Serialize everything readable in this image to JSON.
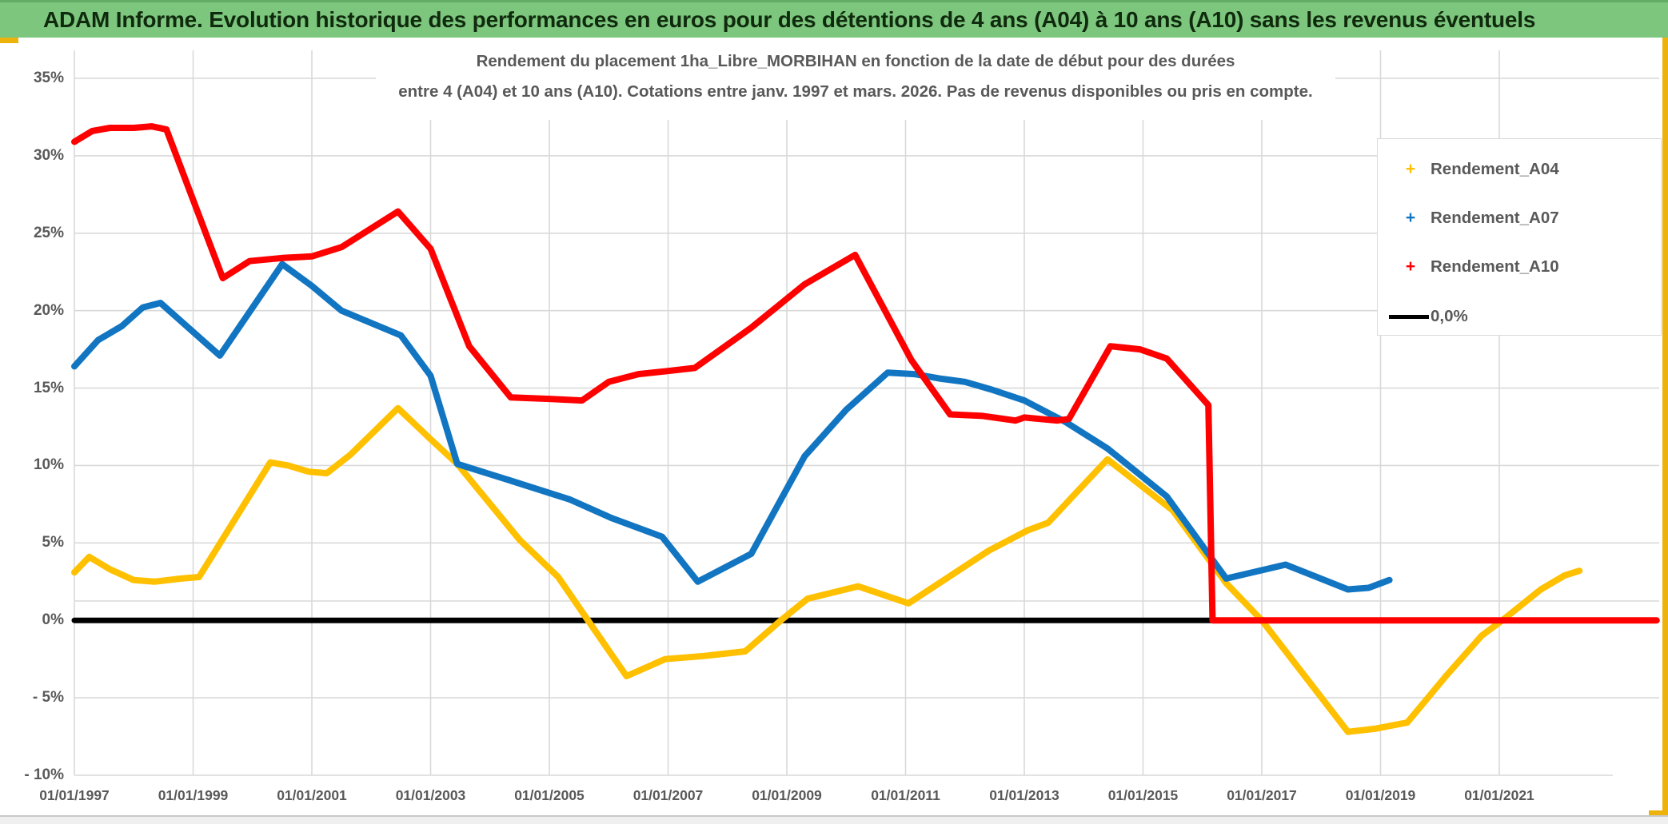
{
  "header": {
    "title": "ADAM Informe. Evolution historique des performances en euros pour des détentions de 4 ans (A04) à 10 ans (A10) sans les revenus éventuels"
  },
  "chart_data": {
    "type": "line",
    "title_line1": "Rendement du placement 1ha_Libre_MORBIHAN en fonction de la date de début pour des durées",
    "title_line2": "entre 4 (A04) et 10 ans (A10). Cotations entre janv. 1997 et mars. 2026. Pas de revenus disponibles ou pris en compte.",
    "x_axis": {
      "tick_labels": [
        "01/01/1997",
        "01/01/1999",
        "01/01/2001",
        "01/01/2003",
        "01/01/2005",
        "01/01/2007",
        "01/01/2009",
        "01/01/2011",
        "01/01/2013",
        "01/01/2015",
        "01/01/2017",
        "01/01/2019",
        "01/01/2021"
      ],
      "tick_years": [
        1997,
        1999,
        2001,
        2003,
        2005,
        2007,
        2009,
        2011,
        2013,
        2015,
        2017,
        2019,
        2021
      ],
      "min_year": 1997.0,
      "max_year": 2023.7,
      "grid": true
    },
    "y_axis": {
      "tick_labels": [
        "35%",
        "30%",
        "25%",
        "20%",
        "15%",
        "10%",
        "5%",
        "0%",
        "- 5%",
        "- 10%"
      ],
      "tick_values": [
        35,
        30,
        25,
        20,
        15,
        10,
        5,
        0,
        -5,
        -10
      ],
      "extra_gridline_value": 1.25,
      "unit": "percent",
      "min": -10,
      "max": 36.8,
      "grid": true
    },
    "legend": {
      "position": "right",
      "items": [
        {
          "label": "Rendement_A04",
          "marker": "+",
          "color": "#FFC000"
        },
        {
          "label": "Rendement_A07",
          "marker": "+",
          "color": "#1175C2"
        },
        {
          "label": "Rendement_A10",
          "marker": "+",
          "color": "#FF0000"
        },
        {
          "label": "0,0%",
          "marker": "line",
          "color": "#000000"
        }
      ]
    },
    "series": [
      {
        "name": "0,0%",
        "color": "#000000",
        "width": 7,
        "points": [
          [
            1997.0,
            0
          ],
          [
            2023.65,
            0
          ]
        ]
      },
      {
        "name": "Rendement_A04",
        "color": "#FFC000",
        "width": 8,
        "points": [
          [
            1997.0,
            3.1
          ],
          [
            1997.25,
            4.1
          ],
          [
            1997.6,
            3.3
          ],
          [
            1998.0,
            2.6
          ],
          [
            1998.35,
            2.5
          ],
          [
            1998.8,
            2.7
          ],
          [
            1999.1,
            2.8
          ],
          [
            2000.3,
            10.2
          ],
          [
            2000.6,
            10.0
          ],
          [
            2000.95,
            9.6
          ],
          [
            2001.25,
            9.5
          ],
          [
            2001.65,
            10.7
          ],
          [
            2002.45,
            13.7
          ],
          [
            2003.0,
            11.7
          ],
          [
            2003.45,
            10.1
          ],
          [
            2004.5,
            5.2
          ],
          [
            2005.15,
            2.8
          ],
          [
            2005.65,
            0.0
          ],
          [
            2006.3,
            -3.6
          ],
          [
            2006.95,
            -2.5
          ],
          [
            2007.6,
            -2.3
          ],
          [
            2008.3,
            -2.0
          ],
          [
            2008.9,
            0.0
          ],
          [
            2009.35,
            1.4
          ],
          [
            2010.2,
            2.2
          ],
          [
            2011.05,
            1.1
          ],
          [
            2012.4,
            4.5
          ],
          [
            2013.05,
            5.8
          ],
          [
            2013.4,
            6.3
          ],
          [
            2014.4,
            10.4
          ],
          [
            2015.5,
            7.1
          ],
          [
            2016.4,
            2.4
          ],
          [
            2017.0,
            0.0
          ],
          [
            2018.45,
            -7.2
          ],
          [
            2018.9,
            -7.0
          ],
          [
            2019.45,
            -6.6
          ],
          [
            2020.1,
            -3.6
          ],
          [
            2020.7,
            -1.0
          ],
          [
            2021.05,
            0.0
          ],
          [
            2021.7,
            2.0
          ],
          [
            2022.1,
            2.9
          ],
          [
            2022.35,
            3.2
          ]
        ]
      },
      {
        "name": "Rendement_A07",
        "color": "#1175C2",
        "width": 8,
        "points": [
          [
            1997.0,
            16.4
          ],
          [
            1997.4,
            18.1
          ],
          [
            1997.8,
            19.0
          ],
          [
            1998.15,
            20.2
          ],
          [
            1998.45,
            20.5
          ],
          [
            1999.45,
            17.1
          ],
          [
            2000.5,
            23.0
          ],
          [
            2001.0,
            21.6
          ],
          [
            2001.5,
            20.0
          ],
          [
            2002.0,
            19.2
          ],
          [
            2002.5,
            18.4
          ],
          [
            2003.0,
            15.8
          ],
          [
            2003.45,
            10.1
          ],
          [
            2004.2,
            9.2
          ],
          [
            2005.35,
            7.8
          ],
          [
            2006.05,
            6.6
          ],
          [
            2006.9,
            5.4
          ],
          [
            2007.5,
            2.5
          ],
          [
            2008.4,
            4.3
          ],
          [
            2009.3,
            10.6
          ],
          [
            2010.0,
            13.6
          ],
          [
            2010.7,
            16.0
          ],
          [
            2011.15,
            15.9
          ],
          [
            2011.6,
            15.6
          ],
          [
            2012.0,
            15.4
          ],
          [
            2012.45,
            14.9
          ],
          [
            2013.0,
            14.2
          ],
          [
            2013.7,
            12.8
          ],
          [
            2014.4,
            11.1
          ],
          [
            2015.4,
            8.0
          ],
          [
            2016.4,
            2.7
          ],
          [
            2017.4,
            3.6
          ],
          [
            2018.45,
            2.0
          ],
          [
            2018.8,
            2.1
          ],
          [
            2019.15,
            2.6
          ]
        ]
      },
      {
        "name": "Rendement_A10",
        "color": "#FF0000",
        "width": 8,
        "points": [
          [
            1997.0,
            30.9
          ],
          [
            1997.3,
            31.6
          ],
          [
            1997.6,
            31.8
          ],
          [
            1998.0,
            31.8
          ],
          [
            1998.3,
            31.9
          ],
          [
            1998.55,
            31.7
          ],
          [
            1999.5,
            22.1
          ],
          [
            1999.95,
            23.2
          ],
          [
            2000.5,
            23.4
          ],
          [
            2001.0,
            23.5
          ],
          [
            2001.5,
            24.1
          ],
          [
            2002.45,
            26.4
          ],
          [
            2003.0,
            24.0
          ],
          [
            2003.65,
            17.7
          ],
          [
            2004.35,
            14.4
          ],
          [
            2005.0,
            14.3
          ],
          [
            2005.55,
            14.2
          ],
          [
            2006.0,
            15.4
          ],
          [
            2006.5,
            15.9
          ],
          [
            2007.0,
            16.1
          ],
          [
            2007.45,
            16.3
          ],
          [
            2008.4,
            18.9
          ],
          [
            2009.3,
            21.7
          ],
          [
            2010.15,
            23.6
          ],
          [
            2011.1,
            16.8
          ],
          [
            2011.75,
            13.3
          ],
          [
            2012.3,
            13.2
          ],
          [
            2012.85,
            12.9
          ],
          [
            2013.0,
            13.1
          ],
          [
            2013.55,
            12.9
          ],
          [
            2013.75,
            13.0
          ],
          [
            2014.45,
            17.7
          ],
          [
            2014.95,
            17.5
          ],
          [
            2015.4,
            16.9
          ],
          [
            2016.1,
            13.9
          ],
          [
            2016.17,
            0.0
          ],
          [
            2023.65,
            0.0
          ]
        ]
      }
    ],
    "colors": {
      "header_green": "#7CC67E",
      "accent_gold": "#EDB20B",
      "gridline": "#D9D9D9",
      "axis_text": "#595959",
      "background": "#FFFFFF"
    }
  }
}
